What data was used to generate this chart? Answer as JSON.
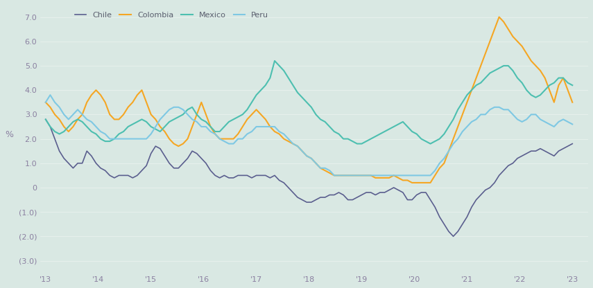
{
  "ylabel": "%",
  "ylim": [
    -3.5,
    7.5
  ],
  "yticks": [
    7.0,
    6.0,
    5.0,
    4.0,
    3.0,
    2.0,
    1.0,
    0.0,
    -1.0,
    -2.0,
    -3.0
  ],
  "ytick_labels": [
    "7.0",
    "6.0",
    "5.0",
    "4.0",
    "3.0",
    "2.0",
    "1.0",
    "0",
    "(1.0)",
    "(2.0)",
    "(3.0)"
  ],
  "xtick_labels": [
    "'13",
    "'14",
    "'15",
    "'16",
    "'17",
    "'18",
    "'19",
    "'20",
    "'21",
    "'22",
    "'23"
  ],
  "background_color": "#d9e8e3",
  "line_colors": {
    "Chile": "#5a5e8e",
    "Colombia": "#f5a623",
    "Mexico": "#4dbfb0",
    "Peru": "#7ec8e3"
  },
  "legend_order": [
    "Chile",
    "Colombia",
    "Mexico",
    "Peru"
  ],
  "Chile": [
    2.8,
    2.5,
    2.0,
    1.5,
    1.2,
    1.0,
    0.8,
    1.0,
    1.0,
    1.5,
    1.3,
    1.0,
    0.8,
    0.7,
    0.5,
    0.4,
    0.5,
    0.5,
    0.5,
    0.4,
    0.5,
    0.7,
    0.9,
    1.4,
    1.7,
    1.6,
    1.3,
    1.0,
    0.8,
    0.8,
    1.0,
    1.2,
    1.5,
    1.4,
    1.2,
    1.0,
    0.7,
    0.5,
    0.4,
    0.5,
    0.4,
    0.4,
    0.5,
    0.5,
    0.5,
    0.4,
    0.5,
    0.5,
    0.5,
    0.4,
    0.5,
    0.3,
    0.2,
    0.0,
    -0.2,
    -0.4,
    -0.5,
    -0.6,
    -0.6,
    -0.5,
    -0.4,
    -0.4,
    -0.3,
    -0.3,
    -0.2,
    -0.3,
    -0.5,
    -0.5,
    -0.4,
    -0.3,
    -0.2,
    -0.2,
    -0.3,
    -0.2,
    -0.2,
    -0.1,
    0.0,
    -0.1,
    -0.2,
    -0.5,
    -0.5,
    -0.3,
    -0.2,
    -0.2,
    -0.5,
    -0.8,
    -1.2,
    -1.5,
    -1.8,
    -2.0,
    -1.8,
    -1.5,
    -1.2,
    -0.8,
    -0.5,
    -0.3,
    -0.1,
    0.0,
    0.2,
    0.5,
    0.7,
    0.9,
    1.0,
    1.2,
    1.3,
    1.4,
    1.5,
    1.5,
    1.6,
    1.5,
    1.4,
    1.3,
    1.5,
    1.6,
    1.7,
    1.8
  ],
  "Colombia": [
    3.5,
    3.3,
    3.0,
    2.8,
    2.5,
    2.3,
    2.5,
    2.8,
    3.0,
    3.5,
    3.8,
    4.0,
    3.8,
    3.5,
    3.0,
    2.8,
    2.8,
    3.0,
    3.3,
    3.5,
    3.8,
    4.0,
    3.5,
    3.0,
    2.8,
    2.5,
    2.3,
    2.0,
    1.8,
    1.7,
    1.8,
    2.0,
    2.5,
    3.0,
    3.5,
    3.0,
    2.5,
    2.2,
    2.0,
    2.0,
    2.0,
    2.0,
    2.2,
    2.5,
    2.8,
    3.0,
    3.2,
    3.0,
    2.8,
    2.5,
    2.3,
    2.2,
    2.0,
    1.9,
    1.8,
    1.7,
    1.5,
    1.3,
    1.2,
    1.0,
    0.8,
    0.7,
    0.6,
    0.5,
    0.5,
    0.5,
    0.5,
    0.5,
    0.5,
    0.5,
    0.5,
    0.5,
    0.4,
    0.4,
    0.4,
    0.4,
    0.5,
    0.4,
    0.3,
    0.3,
    0.2,
    0.2,
    0.2,
    0.2,
    0.2,
    0.5,
    0.8,
    1.0,
    1.5,
    2.0,
    2.5,
    3.0,
    3.5,
    4.0,
    4.5,
    5.0,
    5.5,
    6.0,
    6.5,
    7.0,
    6.8,
    6.5,
    6.2,
    6.0,
    5.8,
    5.5,
    5.2,
    5.0,
    4.8,
    4.5,
    4.0,
    3.5,
    4.2,
    4.5,
    4.0,
    3.5
  ],
  "Mexico": [
    2.8,
    2.5,
    2.3,
    2.2,
    2.3,
    2.5,
    2.7,
    2.8,
    2.7,
    2.5,
    2.3,
    2.2,
    2.0,
    1.9,
    1.9,
    2.0,
    2.2,
    2.3,
    2.5,
    2.6,
    2.7,
    2.8,
    2.7,
    2.5,
    2.4,
    2.3,
    2.5,
    2.7,
    2.8,
    2.9,
    3.0,
    3.2,
    3.3,
    3.0,
    2.8,
    2.7,
    2.5,
    2.3,
    2.3,
    2.5,
    2.7,
    2.8,
    2.9,
    3.0,
    3.2,
    3.5,
    3.8,
    4.0,
    4.2,
    4.5,
    5.2,
    5.0,
    4.8,
    4.5,
    4.2,
    3.9,
    3.7,
    3.5,
    3.3,
    3.0,
    2.8,
    2.7,
    2.5,
    2.3,
    2.2,
    2.0,
    2.0,
    1.9,
    1.8,
    1.8,
    1.9,
    2.0,
    2.1,
    2.2,
    2.3,
    2.4,
    2.5,
    2.6,
    2.7,
    2.5,
    2.3,
    2.2,
    2.0,
    1.9,
    1.8,
    1.9,
    2.0,
    2.2,
    2.5,
    2.8,
    3.2,
    3.5,
    3.8,
    4.0,
    4.2,
    4.3,
    4.5,
    4.7,
    4.8,
    4.9,
    5.0,
    5.0,
    4.8,
    4.5,
    4.3,
    4.0,
    3.8,
    3.7,
    3.8,
    4.0,
    4.2,
    4.3,
    4.5,
    4.5,
    4.3,
    4.2
  ],
  "Peru": [
    3.5,
    3.8,
    3.5,
    3.3,
    3.0,
    2.8,
    3.0,
    3.2,
    3.0,
    2.8,
    2.7,
    2.5,
    2.3,
    2.2,
    2.0,
    2.0,
    2.0,
    2.0,
    2.0,
    2.0,
    2.0,
    2.0,
    2.0,
    2.2,
    2.5,
    2.8,
    3.0,
    3.2,
    3.3,
    3.3,
    3.2,
    3.0,
    2.8,
    2.7,
    2.5,
    2.5,
    2.3,
    2.2,
    2.0,
    1.9,
    1.8,
    1.8,
    2.0,
    2.0,
    2.2,
    2.3,
    2.5,
    2.5,
    2.5,
    2.5,
    2.5,
    2.3,
    2.2,
    2.0,
    1.8,
    1.7,
    1.5,
    1.3,
    1.2,
    1.0,
    0.8,
    0.8,
    0.7,
    0.5,
    0.5,
    0.5,
    0.5,
    0.5,
    0.5,
    0.5,
    0.5,
    0.5,
    0.5,
    0.5,
    0.5,
    0.5,
    0.5,
    0.5,
    0.5,
    0.5,
    0.5,
    0.5,
    0.5,
    0.5,
    0.5,
    0.7,
    1.0,
    1.2,
    1.5,
    1.8,
    2.0,
    2.3,
    2.5,
    2.7,
    2.8,
    3.0,
    3.0,
    3.2,
    3.3,
    3.3,
    3.2,
    3.2,
    3.0,
    2.8,
    2.7,
    2.8,
    3.0,
    3.0,
    2.8,
    2.7,
    2.6,
    2.5,
    2.7,
    2.8,
    2.7,
    2.6
  ]
}
